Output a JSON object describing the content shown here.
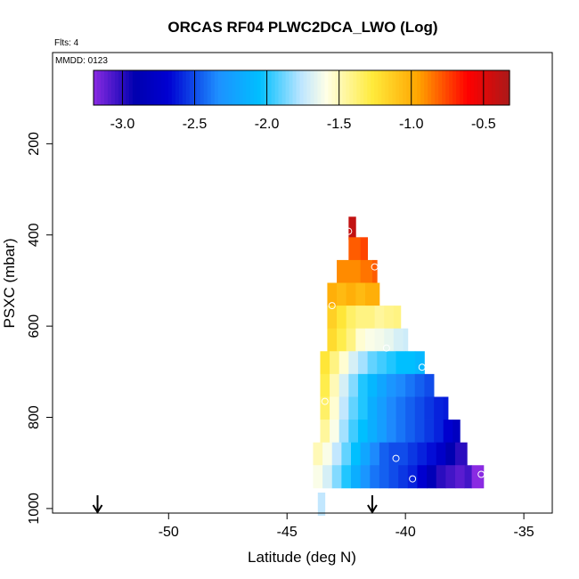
{
  "chart_data": {
    "type": "heatmap",
    "title": "ORCAS RF04 PLWC2DCA_LWO (Log)",
    "flights_label": "Flts: 4",
    "date_label": "MMDD: 0123",
    "xlabel": "Latitude (deg N)",
    "ylabel": "PSXC (mbar)",
    "xlim": [
      -54.9,
      -33.8
    ],
    "ylim": [
      1010,
      0
    ],
    "xticks": [
      -50,
      -45,
      -40,
      -35
    ],
    "xtick_labels": [
      "-50",
      "-45",
      "-40",
      "-35"
    ],
    "yticks": [
      200,
      400,
      600,
      800,
      1000
    ],
    "ytick_labels": [
      "200",
      "400",
      "600",
      "800",
      "1000"
    ],
    "colorbar": {
      "range": [
        -3.2,
        -0.32
      ],
      "ticks": [
        -3.0,
        -2.5,
        -2.0,
        -1.5,
        -1.0,
        -0.5
      ],
      "tick_labels": [
        "-3.0",
        "-2.5",
        "-2.0",
        "-1.5",
        "-1.0",
        "-0.5"
      ]
    },
    "arrows_lat": [
      -53,
      -41.4
    ],
    "cells": [
      {
        "p": 385,
        "cols": [
          [
            -42.4,
            -42.1,
            -0.4
          ]
        ]
      },
      {
        "p": 430,
        "cols": [
          [
            -42.4,
            -41.9,
            -0.8
          ],
          [
            -41.9,
            -41.6,
            -0.75
          ]
        ]
      },
      {
        "p": 480,
        "cols": [
          [
            -42.9,
            -42.4,
            -0.9
          ],
          [
            -42.4,
            -41.9,
            -0.9
          ],
          [
            -41.9,
            -41.4,
            -0.85
          ],
          [
            -41.4,
            -41.2,
            -0.8
          ]
        ]
      },
      {
        "p": 530,
        "cols": [
          [
            -43.3,
            -42.9,
            -1.0
          ],
          [
            -42.9,
            -42.5,
            -1.05
          ],
          [
            -42.5,
            -42.1,
            -1.0
          ],
          [
            -42.1,
            -41.7,
            -1.05
          ],
          [
            -41.7,
            -41.3,
            -1.0
          ],
          [
            -41.3,
            -41.1,
            -1.0
          ]
        ]
      },
      {
        "p": 580,
        "cols": [
          [
            -43.3,
            -42.9,
            -1.15
          ],
          [
            -42.9,
            -42.5,
            -1.25
          ],
          [
            -42.5,
            -42.1,
            -1.35
          ],
          [
            -42.1,
            -41.7,
            -1.4
          ],
          [
            -41.7,
            -41.3,
            -1.4
          ],
          [
            -41.3,
            -40.9,
            -1.45
          ],
          [
            -40.9,
            -40.5,
            -1.42
          ],
          [
            -40.5,
            -40.2,
            -1.4
          ]
        ]
      },
      {
        "p": 630,
        "cols": [
          [
            -43.3,
            -42.9,
            -1.2
          ],
          [
            -42.9,
            -42.5,
            -1.3
          ],
          [
            -42.5,
            -42.1,
            -1.4
          ],
          [
            -42.1,
            -41.7,
            -1.55
          ],
          [
            -41.7,
            -41.3,
            -1.6
          ],
          [
            -41.3,
            -40.9,
            -1.62
          ],
          [
            -40.9,
            -40.5,
            -1.65
          ],
          [
            -40.5,
            -40.1,
            -1.7
          ],
          [
            -40.1,
            -39.9,
            -1.72
          ]
        ]
      },
      {
        "p": 680,
        "cols": [
          [
            -43.6,
            -43.2,
            -1.25
          ],
          [
            -43.2,
            -42.8,
            -1.4
          ],
          [
            -42.8,
            -42.4,
            -1.55
          ],
          [
            -42.4,
            -42.0,
            -1.7
          ],
          [
            -42.0,
            -41.6,
            -1.8
          ],
          [
            -41.6,
            -41.2,
            -1.9
          ],
          [
            -41.2,
            -40.8,
            -1.95
          ],
          [
            -40.8,
            -40.4,
            -2.0
          ],
          [
            -40.4,
            -40.0,
            -2.05
          ],
          [
            -40.0,
            -39.6,
            -2.05
          ],
          [
            -39.6,
            -39.2,
            -2.1
          ]
        ]
      },
      {
        "p": 730,
        "cols": [
          [
            -43.6,
            -43.2,
            -1.3
          ],
          [
            -43.2,
            -42.8,
            -1.5
          ],
          [
            -42.8,
            -42.4,
            -1.7
          ],
          [
            -42.4,
            -42.0,
            -1.85
          ],
          [
            -42.0,
            -41.6,
            -2.0
          ],
          [
            -41.6,
            -41.2,
            -2.1
          ],
          [
            -41.2,
            -40.8,
            -2.2
          ],
          [
            -40.8,
            -40.4,
            -2.3
          ],
          [
            -40.4,
            -40.0,
            -2.35
          ],
          [
            -40.0,
            -39.6,
            -2.4
          ],
          [
            -39.6,
            -39.2,
            -2.45
          ],
          [
            -39.2,
            -38.8,
            -2.5
          ]
        ]
      },
      {
        "p": 780,
        "cols": [
          [
            -43.6,
            -43.2,
            -1.35
          ],
          [
            -43.2,
            -42.8,
            -1.55
          ],
          [
            -42.8,
            -42.4,
            -1.75
          ],
          [
            -42.4,
            -42.0,
            -1.9
          ],
          [
            -42.0,
            -41.6,
            -2.0
          ],
          [
            -41.6,
            -41.2,
            -2.15
          ],
          [
            -41.2,
            -40.8,
            -2.25
          ],
          [
            -40.8,
            -40.4,
            -2.35
          ],
          [
            -40.4,
            -40.0,
            -2.4
          ],
          [
            -40.0,
            -39.6,
            -2.45
          ],
          [
            -39.6,
            -39.2,
            -2.5
          ],
          [
            -39.2,
            -38.8,
            -2.55
          ],
          [
            -38.8,
            -38.4,
            -2.6
          ],
          [
            -38.4,
            -38.2,
            -2.62
          ]
        ]
      },
      {
        "p": 830,
        "cols": [
          [
            -43.6,
            -43.2,
            -1.45
          ],
          [
            -43.2,
            -42.8,
            -1.6
          ],
          [
            -42.8,
            -42.4,
            -1.8
          ],
          [
            -42.4,
            -42.0,
            -1.95
          ],
          [
            -42.0,
            -41.6,
            -2.05
          ],
          [
            -41.6,
            -41.2,
            -2.15
          ],
          [
            -41.2,
            -40.8,
            -2.25
          ],
          [
            -40.8,
            -40.4,
            -2.35
          ],
          [
            -40.4,
            -40.0,
            -2.4
          ],
          [
            -40.0,
            -39.6,
            -2.45
          ],
          [
            -39.6,
            -39.2,
            -2.5
          ],
          [
            -39.2,
            -38.8,
            -2.55
          ],
          [
            -38.8,
            -38.4,
            -2.6
          ],
          [
            -38.4,
            -38.0,
            -2.7
          ],
          [
            -38.0,
            -37.7,
            -2.8
          ]
        ]
      },
      {
        "p": 880,
        "cols": [
          [
            -43.9,
            -43.5,
            -1.5
          ],
          [
            -43.5,
            -43.1,
            -1.6
          ],
          [
            -43.1,
            -42.7,
            -1.75
          ],
          [
            -42.7,
            -42.3,
            -1.9
          ],
          [
            -42.3,
            -41.9,
            -2.05
          ],
          [
            -41.9,
            -41.5,
            -2.2
          ],
          [
            -41.5,
            -41.1,
            -2.35
          ],
          [
            -41.1,
            -40.7,
            -2.45
          ],
          [
            -40.7,
            -40.3,
            -2.5
          ],
          [
            -40.3,
            -39.9,
            -2.5
          ],
          [
            -39.9,
            -39.5,
            -2.55
          ],
          [
            -39.5,
            -39.1,
            -2.6
          ],
          [
            -39.1,
            -38.7,
            -2.65
          ],
          [
            -38.7,
            -38.3,
            -2.75
          ],
          [
            -38.3,
            -37.9,
            -2.9
          ],
          [
            -37.9,
            -37.4,
            -3.0
          ]
        ]
      },
      {
        "p": 930,
        "cols": [
          [
            -43.9,
            -43.5,
            -1.6
          ],
          [
            -43.5,
            -43.1,
            -1.7
          ],
          [
            -43.1,
            -42.7,
            -1.85
          ],
          [
            -42.7,
            -42.3,
            -2.0
          ],
          [
            -42.3,
            -41.9,
            -2.15
          ],
          [
            -41.9,
            -41.5,
            -2.3
          ],
          [
            -41.5,
            -41.1,
            -2.4
          ],
          [
            -41.1,
            -40.7,
            -2.45
          ],
          [
            -40.7,
            -40.3,
            -2.5
          ],
          [
            -40.3,
            -39.9,
            -2.55
          ],
          [
            -39.9,
            -39.5,
            -2.6
          ],
          [
            -39.5,
            -39.1,
            -2.7
          ],
          [
            -39.1,
            -38.7,
            -2.85
          ],
          [
            -38.7,
            -38.3,
            -3.0
          ],
          [
            -38.3,
            -37.9,
            -3.05
          ],
          [
            -37.9,
            -37.5,
            -3.1
          ],
          [
            -37.5,
            -37.2,
            -3.05
          ],
          [
            -37.2,
            -36.7,
            -3.2
          ]
        ]
      },
      {
        "p": 990,
        "cols": [
          [
            -43.7,
            -43.4,
            -1.75
          ]
        ]
      }
    ],
    "points": [
      {
        "lat": -42.4,
        "p": 392
      },
      {
        "lat": -41.3,
        "p": 470
      },
      {
        "lat": -43.1,
        "p": 555
      },
      {
        "lat": -40.8,
        "p": 648
      },
      {
        "lat": -39.3,
        "p": 690
      },
      {
        "lat": -43.4,
        "p": 765
      },
      {
        "lat": -40.4,
        "p": 890
      },
      {
        "lat": -39.7,
        "p": 935
      },
      {
        "lat": -36.8,
        "p": 925
      }
    ]
  }
}
